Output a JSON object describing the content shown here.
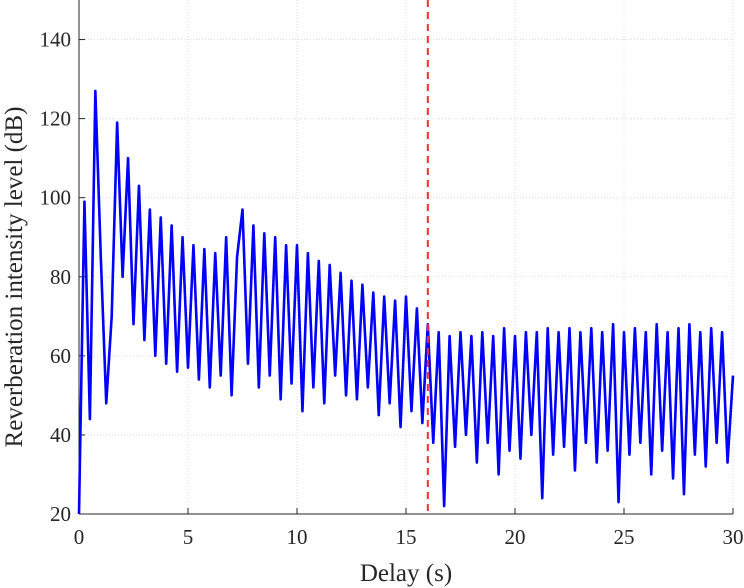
{
  "chart_data": {
    "type": "line",
    "x_label": "Delay (s)",
    "y_label": "Reverberation intensity level (dB)",
    "x": [
      0,
      0.25,
      0.5,
      0.75,
      1,
      1.25,
      1.5,
      1.75,
      2,
      2.25,
      2.5,
      2.75,
      3,
      3.25,
      3.5,
      3.75,
      4,
      4.25,
      4.5,
      4.75,
      5,
      5.25,
      5.5,
      5.75,
      6,
      6.25,
      6.5,
      6.75,
      7,
      7.25,
      7.5,
      7.75,
      8,
      8.25,
      8.5,
      8.75,
      9,
      9.25,
      9.5,
      9.75,
      10,
      10.25,
      10.5,
      10.75,
      11,
      11.25,
      11.5,
      11.75,
      12,
      12.25,
      12.5,
      12.75,
      13,
      13.25,
      13.5,
      13.75,
      14,
      14.25,
      14.5,
      14.75,
      15,
      15.25,
      15.5,
      15.75,
      16,
      16.25,
      16.5,
      16.75,
      17,
      17.25,
      17.5,
      17.75,
      18,
      18.25,
      18.5,
      18.75,
      19,
      19.25,
      19.5,
      19.75,
      20,
      20.25,
      20.5,
      20.75,
      21,
      21.25,
      21.5,
      21.75,
      22,
      22.25,
      22.5,
      22.75,
      23,
      23.25,
      23.5,
      23.75,
      24,
      24.25,
      24.5,
      24.75,
      25,
      25.25,
      25.5,
      25.75,
      26,
      26.25,
      26.5,
      26.75,
      27,
      27.25,
      27.5,
      27.75,
      28,
      28.25,
      28.5,
      28.75,
      29,
      29.25,
      29.5,
      29.75,
      30
    ],
    "series": [
      {
        "color": "#0000ff",
        "values": [
          20,
          99,
          44,
          127,
          85,
          48,
          70,
          119,
          80,
          110,
          68,
          103,
          64,
          97,
          60,
          95,
          58,
          93,
          56,
          90,
          57,
          88,
          54,
          87,
          52,
          86,
          55,
          90,
          50,
          85,
          97,
          58,
          93,
          52,
          91,
          55,
          90,
          49,
          88,
          53,
          88,
          46,
          86,
          52,
          84,
          48,
          83,
          55,
          81,
          50,
          79,
          49,
          78,
          52,
          76,
          45,
          75,
          48,
          74,
          42,
          75,
          46,
          72,
          43,
          68,
          38,
          66,
          22,
          65,
          37,
          66,
          40,
          65,
          33,
          66,
          38,
          65,
          30,
          67,
          36,
          65,
          34,
          66,
          40,
          66,
          24,
          67,
          35,
          66,
          37,
          67,
          31,
          66,
          38,
          67,
          33,
          66,
          36,
          68,
          23,
          66,
          35,
          67,
          38,
          66,
          30,
          68,
          36,
          66,
          29,
          67,
          25,
          68,
          35,
          66,
          32,
          67,
          38,
          66,
          33,
          55
        ]
      }
    ],
    "reference_line": {
      "x": 16,
      "color": "#ff2a2a",
      "dashed": true
    },
    "xlim": [
      0,
      30
    ],
    "xticks": [
      0,
      5,
      10,
      15,
      20,
      25,
      30
    ],
    "ylim": [
      20,
      150
    ],
    "yticks": [
      20,
      40,
      60,
      80,
      100,
      120,
      140
    ],
    "grid": true
  }
}
